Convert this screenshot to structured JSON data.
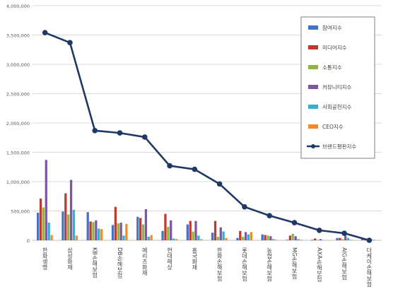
{
  "chart_data": {
    "type": "bar",
    "ylim": [
      0,
      4000000
    ],
    "yticks": [
      0,
      500000,
      1000000,
      1500000,
      2000000,
      2500000,
      3000000,
      3500000,
      4000000
    ],
    "ytick_labels": [
      "0",
      "500,000",
      "1,000,000",
      "1,500,000",
      "2,000,000",
      "2,500,000",
      "3,000,000",
      "3,500,000",
      "4,000,000"
    ],
    "grid": true,
    "legend_position": "right",
    "categories": [
      "한화생명",
      "삼성화재",
      "KB손해보험",
      "DB손해보험",
      "메리츠화재",
      "현대해상",
      "흥국화재",
      "한화손해보험",
      "롯데손해보험",
      "농협손해보험",
      "MG손해보험",
      "AXA손해보험",
      "AIG손해보험",
      "더케이손해보험"
    ],
    "series": [
      {
        "name": "참여지수",
        "color": "#4472c4",
        "values": [
          470000,
          490000,
          480000,
          260000,
          400000,
          160000,
          270000,
          130000,
          40000,
          100000,
          10000,
          10000,
          40000,
          20000
        ]
      },
      {
        "name": "미디어지수",
        "color": "#c0392b",
        "values": [
          710000,
          800000,
          320000,
          570000,
          380000,
          450000,
          330000,
          330000,
          160000,
          90000,
          80000,
          30000,
          40000,
          30000
        ]
      },
      {
        "name": "소통지수",
        "color": "#8db542",
        "values": [
          560000,
          440000,
          310000,
          290000,
          270000,
          230000,
          150000,
          60000,
          60000,
          80000,
          110000,
          10000,
          20000,
          20000
        ]
      },
      {
        "name": "커뮤니티지수",
        "color": "#7e56a6",
        "values": [
          1370000,
          1030000,
          340000,
          300000,
          530000,
          340000,
          330000,
          220000,
          140000,
          70000,
          70000,
          20000,
          80000,
          20000
        ]
      },
      {
        "name": "사회공헌지수",
        "color": "#31b0d0",
        "values": [
          300000,
          520000,
          200000,
          80000,
          60000,
          30000,
          80000,
          150000,
          100000,
          20000,
          20000,
          5000,
          40000,
          10000
        ]
      },
      {
        "name": "CEO지수",
        "color": "#f18b2a",
        "values": [
          90000,
          80000,
          190000,
          280000,
          90000,
          20000,
          20000,
          40000,
          140000,
          10000,
          10000,
          5000,
          10000,
          5000
        ]
      }
    ],
    "line_series": {
      "name": "브랜드평판지수",
      "color": "#1f3864",
      "values": [
        3540000,
        3370000,
        1870000,
        1830000,
        1760000,
        1270000,
        1210000,
        960000,
        570000,
        420000,
        300000,
        170000,
        120000,
        0
      ]
    }
  }
}
